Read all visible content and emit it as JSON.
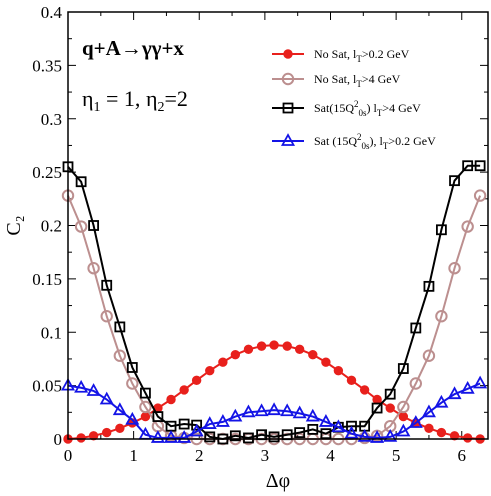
{
  "chart_data": {
    "type": "line",
    "title": "",
    "xlabel": "Δφ",
    "ylabel": "C₂",
    "xlim": [
      0,
      6.4
    ],
    "ylim": [
      0,
      0.4
    ],
    "x_ticks": [
      0,
      1,
      2,
      3,
      4,
      5,
      6
    ],
    "y_ticks": [
      0,
      0.05,
      0.1,
      0.15,
      0.2,
      0.25,
      0.3,
      0.35,
      0.4
    ],
    "y_tick_labels": [
      "0",
      "0.05",
      "0.1",
      "0.15",
      "0.2",
      "0.25",
      "0.3",
      "0.35",
      "0.4"
    ],
    "grid": false,
    "legend_position": "top-right",
    "annotations": {
      "process_left": "q+A",
      "process_arrow": "→",
      "process_right": "γγ+x",
      "eta_label": "η",
      "eta1_sub": "1",
      "eta1_value": " = 1, ",
      "eta2_sub": "2",
      "eta2_value": "=2"
    },
    "series": [
      {
        "name": "No Sat, l_T>0.2 GeV",
        "legend_parts": {
          "pre": "No Sat, l",
          "sub": "T",
          "post": ">0.2 GeV",
          "sup": "",
          "sub2": "",
          "post2": ""
        },
        "color": "#e8201c",
        "marker": "filled-circle",
        "x": [
          0,
          0.2,
          0.39,
          0.59,
          0.79,
          0.98,
          1.18,
          1.37,
          1.57,
          1.77,
          1.96,
          2.16,
          2.36,
          2.55,
          2.75,
          2.95,
          3.14,
          3.34,
          3.53,
          3.73,
          3.93,
          4.12,
          4.32,
          4.52,
          4.71,
          4.91,
          5.11,
          5.3,
          5.5,
          5.69,
          5.89,
          6.09,
          6.28
        ],
        "y": [
          0.0,
          0.001,
          0.003,
          0.006,
          0.01,
          0.015,
          0.021,
          0.029,
          0.037,
          0.046,
          0.055,
          0.064,
          0.072,
          0.079,
          0.084,
          0.087,
          0.088,
          0.087,
          0.084,
          0.079,
          0.072,
          0.064,
          0.055,
          0.046,
          0.037,
          0.029,
          0.021,
          0.015,
          0.01,
          0.006,
          0.003,
          0.001,
          0.0
        ]
      },
      {
        "name": "No Sat, l_T>4 GeV",
        "legend_parts": {
          "pre": "No Sat, l",
          "sub": "T",
          "post": ">4 GeV",
          "sup": "",
          "sub2": "",
          "post2": ""
        },
        "color": "#bc8f8f",
        "marker": "open-circle",
        "x": [
          0,
          0.2,
          0.39,
          0.59,
          0.79,
          0.98,
          1.18,
          1.37,
          1.57,
          1.77,
          1.96,
          2.16,
          2.36,
          2.55,
          2.75,
          2.95,
          3.14,
          3.34,
          3.53,
          3.73,
          3.93,
          4.12,
          4.32,
          4.52,
          4.71,
          4.91,
          5.11,
          5.3,
          5.5,
          5.69,
          5.89,
          6.09,
          6.28
        ],
        "y": [
          0.228,
          0.199,
          0.16,
          0.115,
          0.078,
          0.052,
          0.03,
          0.012,
          0.003,
          0.001,
          0.0,
          0.0,
          0.0,
          0.0,
          0.0,
          0.0,
          0.0,
          0.0,
          0.0,
          0.0,
          0.0,
          0.0,
          0.0,
          0.001,
          0.003,
          0.012,
          0.03,
          0.052,
          0.078,
          0.115,
          0.16,
          0.199,
          0.228
        ]
      },
      {
        "name": "Sat(15Q²_0s) l_T>4 GeV",
        "legend_parts": {
          "pre": "Sat(15Q",
          "sup": "2",
          "sub": "0s",
          "post": ") l",
          "sub2": "T",
          "post2": ">4 GeV"
        },
        "color": "#000000",
        "marker": "open-square",
        "x": [
          0,
          0.2,
          0.39,
          0.59,
          0.79,
          0.98,
          1.18,
          1.37,
          1.57,
          1.77,
          1.96,
          2.16,
          2.36,
          2.55,
          2.75,
          2.95,
          3.14,
          3.34,
          3.53,
          3.73,
          3.93,
          4.12,
          4.32,
          4.52,
          4.71,
          4.91,
          5.11,
          5.3,
          5.5,
          5.69,
          5.89,
          6.09,
          6.28
        ],
        "y": [
          0.255,
          0.241,
          0.2,
          0.144,
          0.105,
          0.067,
          0.043,
          0.021,
          0.012,
          0.014,
          0.013,
          0.002,
          0.0,
          0.003,
          0.001,
          0.004,
          0.002,
          0.004,
          0.006,
          0.009,
          0.005,
          0.011,
          0.012,
          0.012,
          0.029,
          0.042,
          0.066,
          0.104,
          0.143,
          0.196,
          0.242,
          0.256,
          0.256
        ]
      },
      {
        "name": "Sat (15Q²_0s), l_T>0.2 GeV",
        "legend_parts": {
          "pre": "Sat (15Q",
          "sup": "2",
          "sub": "0s",
          "post": "), l",
          "sub2": "T",
          "post2": ">0.2 GeV"
        },
        "color": "#1414e6",
        "marker": "open-triangle",
        "x": [
          0,
          0.2,
          0.39,
          0.59,
          0.79,
          0.98,
          1.18,
          1.37,
          1.57,
          1.77,
          1.96,
          2.16,
          2.36,
          2.55,
          2.75,
          2.95,
          3.14,
          3.34,
          3.53,
          3.73,
          3.93,
          4.12,
          4.32,
          4.52,
          4.71,
          4.91,
          5.11,
          5.3,
          5.5,
          5.69,
          5.89,
          6.09,
          6.28
        ],
        "y": [
          0.05,
          0.048,
          0.045,
          0.037,
          0.027,
          0.018,
          0.004,
          0.001,
          0.001,
          0.001,
          0.007,
          0.014,
          0.016,
          0.021,
          0.025,
          0.026,
          0.027,
          0.026,
          0.024,
          0.021,
          0.016,
          0.011,
          0.005,
          0.002,
          0.001,
          0.002,
          0.007,
          0.015,
          0.025,
          0.034,
          0.042,
          0.047,
          0.052
        ]
      }
    ]
  }
}
